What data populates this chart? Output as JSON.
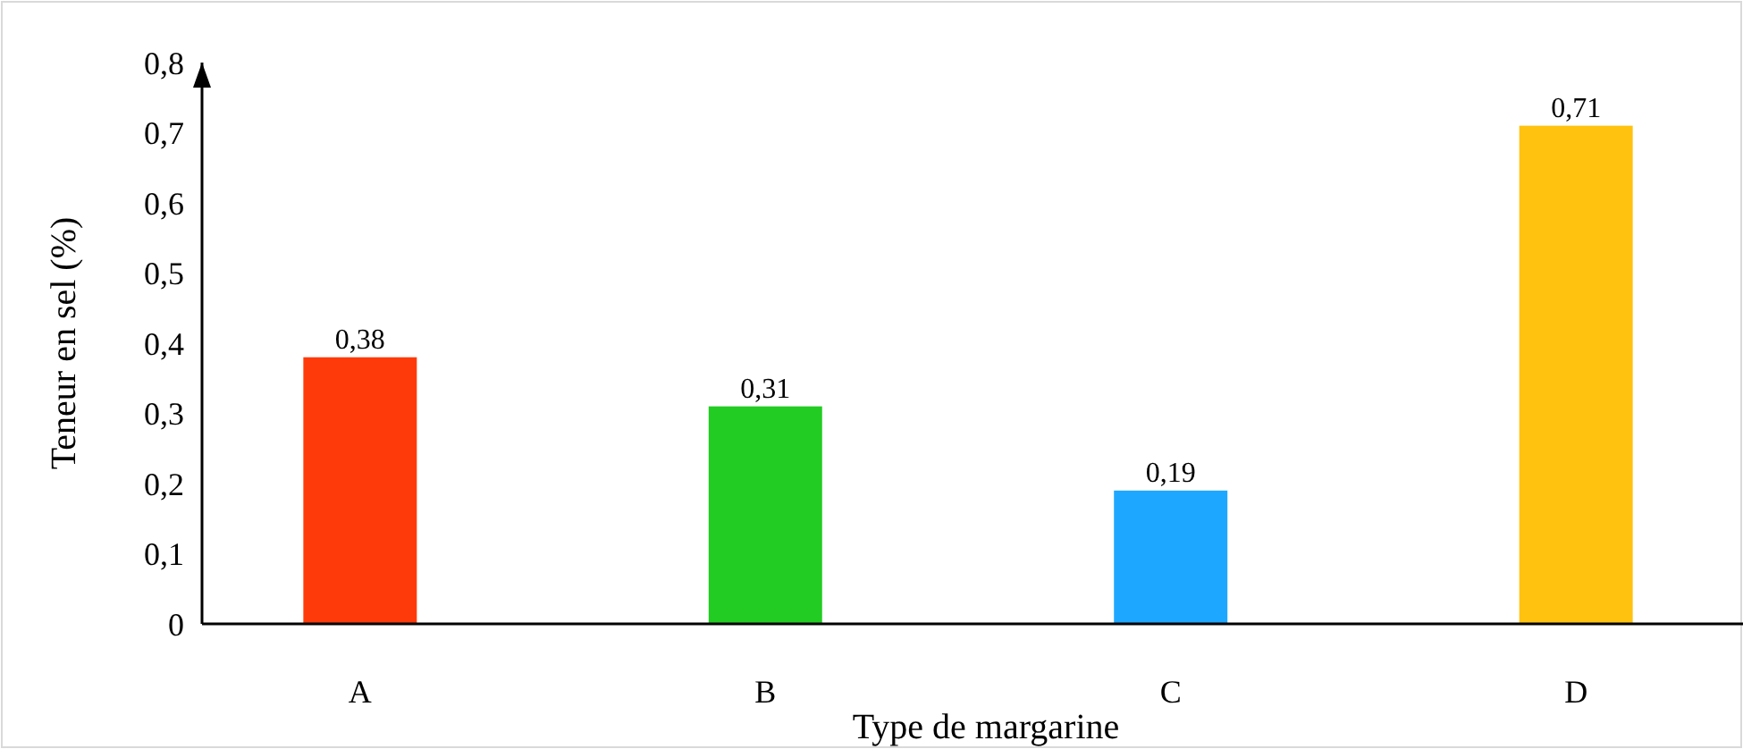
{
  "chart_data": {
    "type": "bar",
    "xlabel": "Type de margarine",
    "ylabel": "Teneur en sel (%)",
    "categories": [
      "A",
      "B",
      "C",
      "D"
    ],
    "values": [
      0.38,
      0.31,
      0.19,
      0.71
    ],
    "colors": [
      "#ff3a0a",
      "#22cc22",
      "#1ea7ff",
      "#ffc20e"
    ],
    "ylim": [
      0,
      0.8
    ],
    "yticks": [
      "0",
      {
        "value": 0.1,
        "label": "0,1"
      },
      {
        "value": 0.2,
        "label": "0,2"
      },
      {
        "value": 0.3,
        "label": "0,3"
      },
      {
        "value": 0.4,
        "label": "0,4"
      },
      {
        "value": 0.5,
        "label": "0,5"
      },
      {
        "value": 0.6,
        "label": "0,6"
      },
      {
        "value": 0.7,
        "label": "0,7"
      },
      {
        "value": 0.8,
        "label": "0,8"
      }
    ],
    "value_labels": [
      "0,38",
      "0,31",
      "0,19",
      "0,71"
    ],
    "grid": false
  }
}
